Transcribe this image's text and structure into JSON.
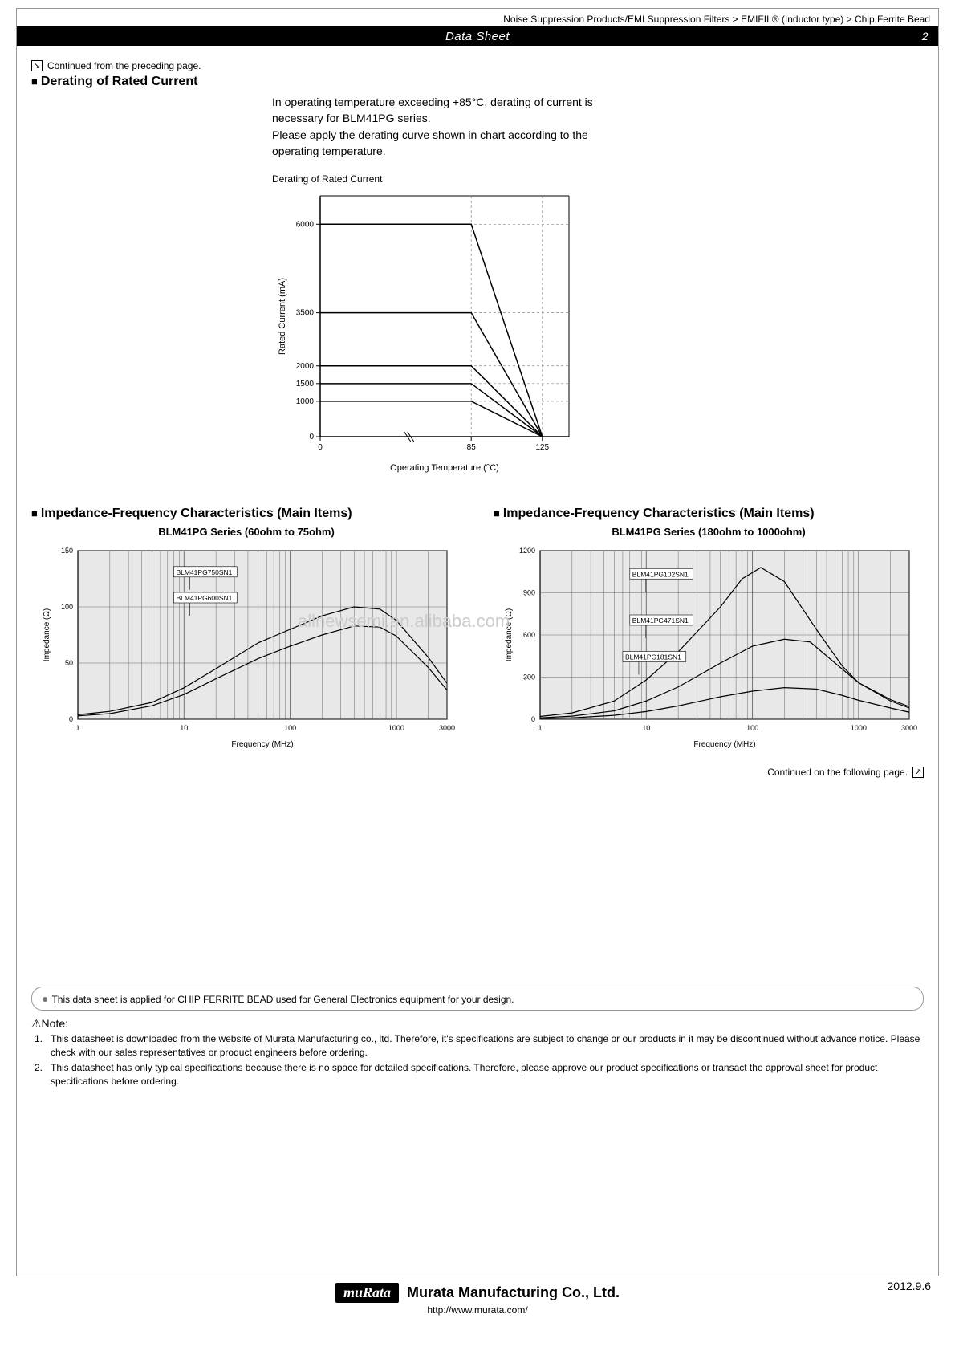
{
  "breadcrumb": "Noise Suppression Products/EMI Suppression Filters > EMIFIL® (Inductor type) > Chip Ferrite Bead",
  "titlebar": {
    "title": "Data Sheet",
    "pagenum": "2"
  },
  "continued_prev": "Continued from the preceding page.",
  "section1": {
    "title": "Derating of Rated Current",
    "body": "In operating temperature exceeding +85°C, derating of current is necessary for BLM41PG series.\nPlease apply the derating curve shown in chart according to the operating temperature.",
    "chart_caption": "Derating of Rated Current"
  },
  "derating_chart": {
    "type": "line",
    "background_color": "#ffffff",
    "axis_color": "#000000",
    "grid_dash": "3,3",
    "xlabel": "Operating Temperature (°C)",
    "ylabel": "Rated Current (mA)",
    "label_fontsize": 11,
    "tick_fontsize": 10,
    "xlim": [
      0,
      140
    ],
    "ylim": [
      0,
      6800
    ],
    "xticks": [
      0,
      85,
      125
    ],
    "yticks": [
      0,
      1000,
      1500,
      2000,
      3500,
      6000
    ],
    "x_break_at": 50,
    "line_color": "#000000",
    "line_width": 1.5,
    "series": [
      {
        "flat_y": 6000,
        "end_x": 85,
        "end_y": 0,
        "at_x": 125
      },
      {
        "flat_y": 3500,
        "end_x": 85,
        "end_y": 0,
        "at_x": 125
      },
      {
        "flat_y": 2000,
        "end_x": 85,
        "end_y": 0,
        "at_x": 125
      },
      {
        "flat_y": 1500,
        "end_x": 85,
        "end_y": 0,
        "at_x": 125
      },
      {
        "flat_y": 1000,
        "end_x": 85,
        "end_y": 0,
        "at_x": 125
      }
    ]
  },
  "section2": {
    "title_left": "Impedance-Frequency Characteristics (Main Items)",
    "subtitle_left": "BLM41PG Series (60ohm to 75ohm)",
    "title_right": "Impedance-Frequency Characteristics (Main Items)",
    "subtitle_right": "BLM41PG Series (180ohm to 1000ohm)"
  },
  "watermark": "allnewsemi.en.alibaba.com",
  "imp_chart_left": {
    "type": "line-log-x",
    "background_color": "#e8e8e8",
    "grid_color": "#666666",
    "axis_color": "#000000",
    "line_color": "#000000",
    "line_width": 1.2,
    "xlabel": "Frequency (MHz)",
    "ylabel": "Impedance (Ω)",
    "label_fontsize": 10,
    "tick_fontsize": 9,
    "xlim": [
      1,
      3000
    ],
    "ylim": [
      0,
      150
    ],
    "xticks": [
      1,
      10,
      100,
      1000,
      3000
    ],
    "yticks": [
      0,
      50,
      100,
      150
    ],
    "series": [
      {
        "name": "BLM41PG750SN1",
        "label_x": 8,
        "label_y": 128,
        "points": [
          [
            1,
            4
          ],
          [
            2,
            7
          ],
          [
            5,
            15
          ],
          [
            10,
            28
          ],
          [
            20,
            45
          ],
          [
            50,
            68
          ],
          [
            100,
            80
          ],
          [
            200,
            92
          ],
          [
            400,
            100
          ],
          [
            700,
            98
          ],
          [
            1000,
            88
          ],
          [
            2000,
            55
          ],
          [
            3000,
            32
          ]
        ]
      },
      {
        "name": "BLM41PG600SN1",
        "label_x": 8,
        "label_y": 105,
        "points": [
          [
            1,
            3
          ],
          [
            2,
            5
          ],
          [
            5,
            12
          ],
          [
            10,
            22
          ],
          [
            20,
            36
          ],
          [
            50,
            54
          ],
          [
            100,
            65
          ],
          [
            200,
            75
          ],
          [
            400,
            83
          ],
          [
            700,
            82
          ],
          [
            1000,
            74
          ],
          [
            2000,
            46
          ],
          [
            3000,
            26
          ]
        ]
      }
    ]
  },
  "imp_chart_right": {
    "type": "line-log-x",
    "background_color": "#e8e8e8",
    "grid_color": "#666666",
    "axis_color": "#000000",
    "line_color": "#000000",
    "line_width": 1.2,
    "xlabel": "Frequency (MHz)",
    "ylabel": "Impedance (Ω)",
    "label_fontsize": 10,
    "tick_fontsize": 9,
    "xlim": [
      1,
      3000
    ],
    "ylim": [
      0,
      1200
    ],
    "xticks": [
      1,
      10,
      100,
      1000,
      3000
    ],
    "yticks": [
      0,
      300,
      600,
      900,
      1200
    ],
    "series": [
      {
        "name": "BLM41PG102SN1",
        "label_x": 7,
        "label_y": 1010,
        "points": [
          [
            1,
            20
          ],
          [
            2,
            45
          ],
          [
            5,
            130
          ],
          [
            10,
            280
          ],
          [
            20,
            480
          ],
          [
            50,
            800
          ],
          [
            80,
            1000
          ],
          [
            120,
            1080
          ],
          [
            200,
            980
          ],
          [
            400,
            640
          ],
          [
            700,
            380
          ],
          [
            1000,
            260
          ],
          [
            2000,
            140
          ],
          [
            3000,
            90
          ]
        ]
      },
      {
        "name": "BLM41PG471SN1",
        "label_x": 7,
        "label_y": 680,
        "points": [
          [
            1,
            10
          ],
          [
            2,
            22
          ],
          [
            5,
            60
          ],
          [
            10,
            130
          ],
          [
            20,
            230
          ],
          [
            50,
            400
          ],
          [
            100,
            520
          ],
          [
            200,
            570
          ],
          [
            350,
            550
          ],
          [
            600,
            400
          ],
          [
            1000,
            260
          ],
          [
            2000,
            130
          ],
          [
            3000,
            80
          ]
        ]
      },
      {
        "name": "BLM41PG181SN1",
        "label_x": 6,
        "label_y": 420,
        "points": [
          [
            1,
            5
          ],
          [
            2,
            10
          ],
          [
            5,
            28
          ],
          [
            10,
            55
          ],
          [
            20,
            95
          ],
          [
            50,
            160
          ],
          [
            100,
            200
          ],
          [
            200,
            225
          ],
          [
            400,
            215
          ],
          [
            700,
            170
          ],
          [
            1000,
            135
          ],
          [
            2000,
            80
          ],
          [
            3000,
            50
          ]
        ]
      }
    ]
  },
  "continued_next": "Continued on the following page.",
  "note_box": "This data sheet is applied for CHIP FERRITE BEAD used for General Electronics equipment for your design.",
  "notes_title": "⚠Note:",
  "notes": [
    "This datasheet is downloaded from the website of Murata Manufacturing co., ltd. Therefore, it's specifications are subject to change or our products in it may be discontinued without advance notice. Please check with our sales representatives or product engineers before ordering.",
    "This datasheet has only typical specifications because there is no space for detailed specifications. Therefore, please approve our product specifications or transact the approval sheet for product specifications before ordering."
  ],
  "footer": {
    "date": "2012.9.6",
    "logo": "muRata",
    "company": "Murata Manufacturing Co., Ltd.",
    "url": "http://www.murata.com/"
  }
}
